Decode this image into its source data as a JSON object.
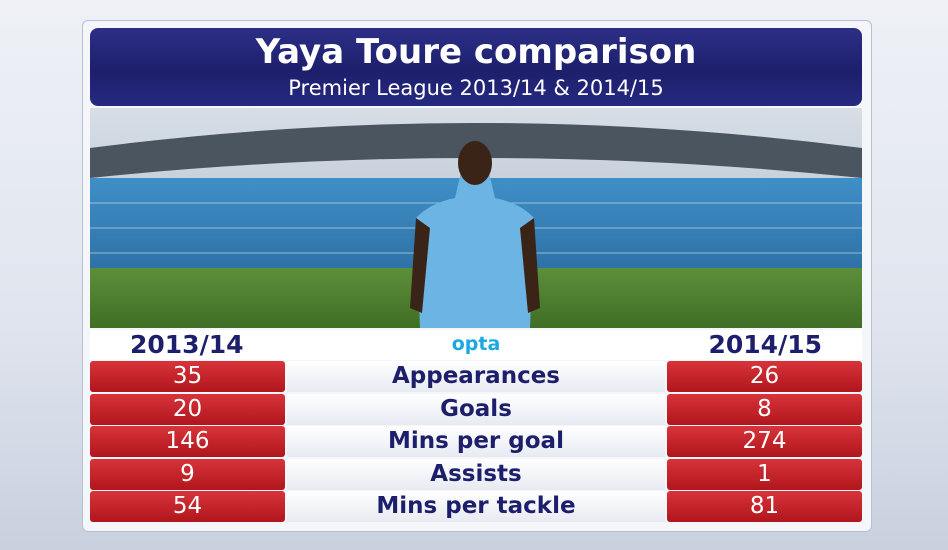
{
  "header": {
    "title": "Yaya Toure comparison",
    "subtitle": "Premier League 2013/14 & 2014/15"
  },
  "table": {
    "columns": [
      "2013/14",
      "opta",
      "2014/15"
    ],
    "rows": [
      [
        "35",
        "Appearances",
        "26"
      ],
      [
        "20",
        "Goals",
        "8"
      ],
      [
        "146",
        "Mins per goal",
        "274"
      ],
      [
        "9",
        "Assists",
        "1"
      ],
      [
        "54",
        "Mins per tackle",
        "81"
      ]
    ]
  }
}
